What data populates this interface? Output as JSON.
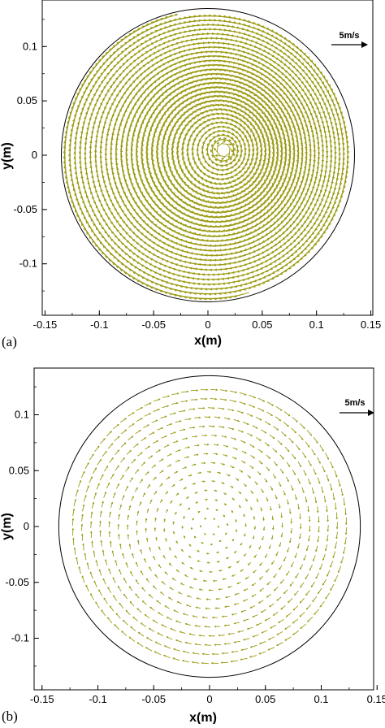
{
  "chart_data": [
    {
      "type": "scatter",
      "subtype": "vector-field",
      "panel_label": "(a)",
      "xlabel": "x(m)",
      "ylabel": "y(m)",
      "xlim": [
        -0.15,
        0.15
      ],
      "ylim": [
        -0.14,
        0.14
      ],
      "xticks": [
        -0.15,
        -0.1,
        -0.05,
        0,
        0.05,
        0.1,
        0.15
      ],
      "xtick_labels": [
        "-0.15",
        "-0.1",
        "-0.05",
        "0",
        "0.05",
        "0.1",
        "0.15"
      ],
      "yticks": [
        0.1,
        0.05,
        0,
        -0.05,
        -0.1
      ],
      "ytick_labels": [
        "0.1",
        "0.05",
        "0",
        "-0.05",
        "-0.1"
      ],
      "grid": false,
      "boundary_circle": {
        "center": [
          0,
          0
        ],
        "radius": 0.135
      },
      "reference_vector": {
        "label": "5m/s",
        "magnitude": 5,
        "position": "top-right"
      },
      "vector_color": "#9a9a12",
      "vector_pattern": "dense swirling vortex, clockwise rotation; magnitude decreases toward a vortex core offset near (0.015, 0.005)",
      "vortex_center": [
        0.015,
        0.005
      ],
      "sample_vectors": [
        {
          "x": 0.0,
          "y": 0.12,
          "u": 2.6,
          "v": -0.6
        },
        {
          "x": 0.12,
          "y": 0.0,
          "u": -0.6,
          "v": -2.6
        },
        {
          "x": 0.0,
          "y": -0.12,
          "u": -2.6,
          "v": 0.6
        },
        {
          "x": -0.12,
          "y": 0.0,
          "u": 0.6,
          "v": 2.6
        },
        {
          "x": 0.06,
          "y": 0.06,
          "u": 1.3,
          "v": -1.5
        },
        {
          "x": -0.06,
          "y": -0.06,
          "u": -1.3,
          "v": 1.5
        }
      ]
    },
    {
      "type": "scatter",
      "subtype": "vector-field",
      "panel_label": "(b)",
      "xlabel": "x(m)",
      "ylabel": "y(m)",
      "xlim": [
        -0.15,
        0.15
      ],
      "ylim": [
        -0.14,
        0.14
      ],
      "xticks": [
        -0.15,
        -0.1,
        -0.05,
        0,
        0.05,
        0.1,
        0.15
      ],
      "xtick_labels": [
        "-0.15",
        "-0.1",
        "-0.05",
        "0",
        "0.05",
        "0.1",
        "0.15"
      ],
      "yticks": [
        0.1,
        0.05,
        0,
        -0.05,
        -0.1
      ],
      "ytick_labels": [
        "0.1",
        "0.05",
        "0",
        "-0.05",
        "-0.1"
      ],
      "grid": false,
      "boundary_circle": {
        "center": [
          0,
          0
        ],
        "radius": 0.135
      },
      "reference_vector": {
        "label": "5m/s",
        "magnitude": 5,
        "position": "top-right"
      },
      "vector_color": "#9a9a12",
      "vector_pattern": "sparse concentric rings, clockwise solid-body-like rotation centred at origin; magnitude grows with radius",
      "vortex_center": [
        0.0,
        0.0
      ],
      "sample_vectors": [
        {
          "x": 0.0,
          "y": 0.12,
          "u": 1.6,
          "v": 0.0
        },
        {
          "x": 0.12,
          "y": 0.0,
          "u": 0.0,
          "v": -1.6
        },
        {
          "x": 0.0,
          "y": -0.12,
          "u": -1.6,
          "v": 0.0
        },
        {
          "x": -0.12,
          "y": 0.0,
          "u": 0.0,
          "v": 1.6
        },
        {
          "x": 0.05,
          "y": 0.0,
          "u": 0.0,
          "v": -0.6
        },
        {
          "x": 0.0,
          "y": 0.05,
          "u": 0.6,
          "v": 0.0
        }
      ]
    }
  ]
}
